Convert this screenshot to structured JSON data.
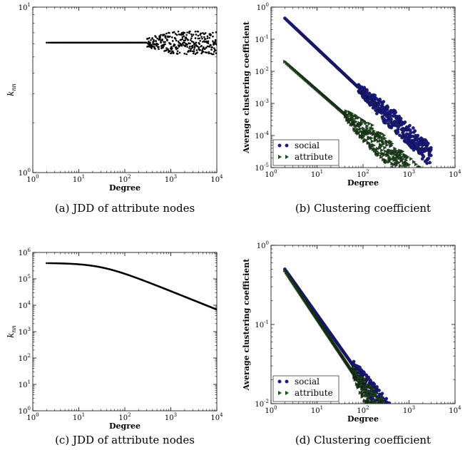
{
  "chart_data": [
    {
      "id": "a",
      "type": "scatter",
      "caption": "(a) JDD of attribute nodes",
      "xlabel": "Degree",
      "ylabel": "k_nn",
      "xscale": "log",
      "yscale": "log",
      "xlim": [
        1,
        10000
      ],
      "ylim": [
        1,
        10
      ],
      "legend": null,
      "series": [
        {
          "marker": "dot",
          "color": "#000000",
          "generator": {
            "kind": "flat",
            "x_start": 2,
            "x_end": 10000,
            "y": 6.1,
            "spread_start": 300,
            "spread": 0.07
          }
        }
      ]
    },
    {
      "id": "b",
      "type": "scatter",
      "caption": "(b) Clustering coefficient",
      "xlabel": "Degree",
      "ylabel": "Average clustering coefficient",
      "xscale": "log",
      "yscale": "log",
      "xlim": [
        1,
        10000
      ],
      "ylim": [
        1e-05,
        1
      ],
      "legend": "bottom-left",
      "series": [
        {
          "name": "social",
          "marker": "circle",
          "color": "#1c1c8c",
          "generator": {
            "kind": "power",
            "x_start": 2,
            "x_end": 3000,
            "y0": 0.45,
            "slope": -1.35,
            "curve": 0.35,
            "spread_start": 80,
            "spread": 0.35
          }
        },
        {
          "name": "attribute",
          "marker": "triangle",
          "color": "#1f4d1f",
          "generator": {
            "kind": "power",
            "x_start": 2,
            "x_end": 10000,
            "y0": 0.02,
            "slope": -1.25,
            "curve": 0.0,
            "spread_start": 40,
            "spread": 0.4
          }
        }
      ]
    },
    {
      "id": "c",
      "type": "scatter",
      "caption": "(c) JDD of attribute nodes",
      "xlabel": "Degree",
      "ylabel": "k_nn",
      "xscale": "log",
      "yscale": "log",
      "xlim": [
        1,
        10000
      ],
      "ylim": [
        1,
        1000000
      ],
      "legend": null,
      "series": [
        {
          "marker": "dot",
          "color": "#000000",
          "generator": {
            "kind": "knee",
            "x_start": 2,
            "x_end": 10000,
            "y0": 400000,
            "knee": 30,
            "slope": -0.7,
            "spread_start": 99999,
            "spread": 0
          }
        }
      ]
    },
    {
      "id": "d",
      "type": "scatter",
      "caption": "(d) Clustering coefficient",
      "xlabel": "Degree",
      "ylabel": "Average clustering coefficient",
      "xscale": "log",
      "yscale": "log",
      "xlim": [
        1,
        10000
      ],
      "ylim": [
        0.01,
        1
      ],
      "legend": "bottom-left",
      "series": [
        {
          "name": "social",
          "marker": "circle",
          "color": "#1c1c8c",
          "generator": {
            "kind": "power",
            "x_start": 2,
            "x_end": 1200,
            "y0": 0.5,
            "slope": -0.82,
            "curve": 0.0,
            "spread_start": 60,
            "spread": 0.18
          }
        },
        {
          "name": "attribute",
          "marker": "triangle",
          "color": "#1f4d1f",
          "generator": {
            "kind": "power",
            "x_start": 2,
            "x_end": 800,
            "y0": 0.48,
            "slope": -0.87,
            "curve": 0.0,
            "spread_start": 60,
            "spread": 0.22
          }
        }
      ]
    }
  ]
}
